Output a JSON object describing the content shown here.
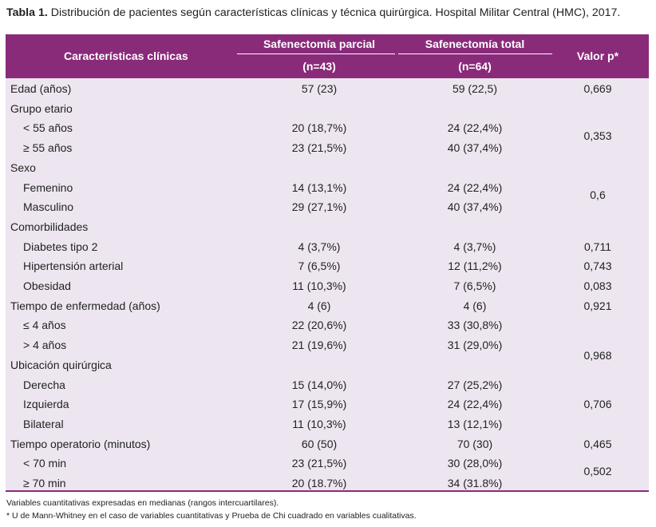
{
  "caption": {
    "label": "Tabla 1.",
    "text": " Distribución de pacientes según características clínicas y técnica quirúrgica. Hospital Militar Central (HMC), 2017."
  },
  "header": {
    "col0": "Características clínicas",
    "col1": "Safenectomía parcial",
    "col1_n": "(n=43)",
    "col2": "Safenectomía total",
    "col2_n": "(n=64)",
    "col3": "Valor p*"
  },
  "rows": [
    {
      "label": "Edad (años)",
      "indent": false,
      "c1": "57 (23)",
      "c2": "59 (22,5)",
      "p": "0,669"
    },
    {
      "label": "Grupo etario",
      "indent": false,
      "c1": "",
      "c2": "",
      "p": ""
    },
    {
      "label": "< 55 años",
      "indent": true,
      "c1": "20 (18,7%)",
      "c2": "24 (22,4%)",
      "p": ""
    },
    {
      "label": "≥ 55 años",
      "indent": true,
      "c1": "23 (21,5%)",
      "c2": "40 (37,4%)",
      "p": ""
    },
    {
      "label": "Sexo",
      "indent": false,
      "c1": "",
      "c2": "",
      "p": ""
    },
    {
      "label": "Femenino",
      "indent": true,
      "c1": "14 (13,1%)",
      "c2": "24 (22,4%)",
      "p": ""
    },
    {
      "label": "Masculino",
      "indent": true,
      "c1": "29 (27,1%)",
      "c2": "40 (37,4%)",
      "p": ""
    },
    {
      "label": "Comorbilidades",
      "indent": false,
      "c1": "",
      "c2": "",
      "p": ""
    },
    {
      "label": "Diabetes tipo 2",
      "indent": true,
      "c1": "4 (3,7%)",
      "c2": "4 (3,7%)",
      "p": "0,711"
    },
    {
      "label": "Hipertensión arterial",
      "indent": true,
      "c1": "7 (6,5%)",
      "c2": "12 (11,2%)",
      "p": "0,743"
    },
    {
      "label": "Obesidad",
      "indent": true,
      "c1": "11 (10,3%)",
      "c2": "7 (6,5%)",
      "p": "0,083"
    },
    {
      "label": "Tiempo de enfermedad (años)",
      "indent": false,
      "c1": "4 (6)",
      "c2": "4 (6)",
      "p": "0,921"
    },
    {
      "label": "≤ 4 años",
      "indent": true,
      "c1": "22 (20,6%)",
      "c2": "33 (30,8%)",
      "p": ""
    },
    {
      "label": "> 4 años",
      "indent": true,
      "c1": "21 (19,6%)",
      "c2": "31 (29,0%)",
      "p": ""
    },
    {
      "label": "Ubicación quirúrgica",
      "indent": false,
      "c1": "",
      "c2": "",
      "p": ""
    },
    {
      "label": "Derecha",
      "indent": true,
      "c1": "15 (14,0%)",
      "c2": "27 (25,2%)",
      "p": ""
    },
    {
      "label": "Izquierda",
      "indent": true,
      "c1": "17 (15,9%)",
      "c2": "24 (22,4%)",
      "p": "0,706"
    },
    {
      "label": "Bilateral",
      "indent": true,
      "c1": "11 (10,3%)",
      "c2": "13 (12,1%)",
      "p": ""
    },
    {
      "label": "Tiempo operatorio (minutos)",
      "indent": false,
      "c1": "60 (50)",
      "c2": "70 (30)",
      "p": "0,465"
    },
    {
      "label": "< 70 min",
      "indent": true,
      "c1": "23 (21,5%)",
      "c2": "30 (28,0%)",
      "p": ""
    },
    {
      "label": "≥ 70 min",
      "indent": true,
      "c1": "20 (18.7%)",
      "c2": "34 (31.8%)",
      "p": ""
    }
  ],
  "spanned_p": [
    "0,353",
    "0,6",
    "0,968",
    "0,502"
  ],
  "notes": [
    "Variables cuantitativas expresadas en medianas (rangos intercuartilares).",
    "*  U de Mann-Whitney en el caso de variables cuantitativas y Prueba de Chi cuadrado en variables cualitativas."
  ],
  "colors": {
    "header_bg": "#8a2b7a",
    "body_bg": "#ede6f0"
  }
}
